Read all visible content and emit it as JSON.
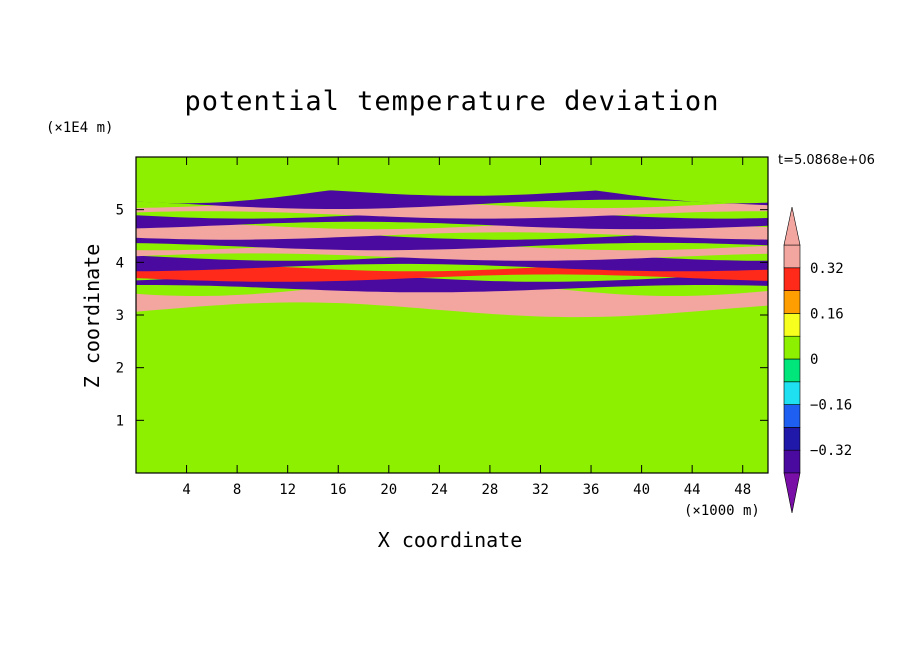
{
  "chart_data": {
    "type": "heatmap",
    "title": "potential temperature deviation",
    "xlabel": "X coordinate",
    "ylabel": "Z coordinate",
    "x_unit": "(×1000 m)",
    "y_unit": "(×1E4 m)",
    "time_label": "t=5.0868e+06",
    "xlim": [
      0,
      50
    ],
    "ylim": [
      0,
      6
    ],
    "x_ticks": [
      4,
      8,
      12,
      16,
      20,
      24,
      28,
      32,
      36,
      40,
      44,
      48
    ],
    "y_ticks": [
      1,
      2,
      3,
      4,
      5
    ],
    "colorbar": {
      "levels": [
        -0.4,
        -0.32,
        -0.24,
        -0.16,
        -0.08,
        0,
        0.08,
        0.16,
        0.24,
        0.32,
        0.4
      ],
      "labels": [
        "0.32",
        "0.16",
        "0",
        "−0.16",
        "−0.32"
      ],
      "label_values": [
        0.32,
        0.16,
        0,
        -0.16,
        -0.32
      ],
      "colors": [
        "#7a0fa8",
        "#4a0aa0",
        "#1f18a8",
        "#1e5ef0",
        "#1ee0f0",
        "#00e67a",
        "#8cf000",
        "#f6ff1e",
        "#ff9e00",
        "#ff2a1a",
        "#f3a6a0"
      ],
      "under_color": "#7a0fa8",
      "over_color": "#f3a6a0"
    },
    "bands": [
      {
        "z": 0.25,
        "value": 0.04
      },
      {
        "z": 0.95,
        "value": 0.06
      },
      {
        "z": 1.35,
        "value": 0.02
      },
      {
        "z": 1.8,
        "value": 0.06
      },
      {
        "z": 2.3,
        "value": 0.02
      },
      {
        "z": 2.8,
        "value": 0.05
      },
      {
        "z": 3.4,
        "value": 0.38
      },
      {
        "z": 3.6,
        "value": -0.36
      },
      {
        "z": 3.8,
        "value": 0.3
      },
      {
        "z": 4.0,
        "value": -0.38
      },
      {
        "z": 4.2,
        "value": 0.42
      },
      {
        "z": 4.4,
        "value": -0.35
      },
      {
        "z": 4.6,
        "value": 0.4
      },
      {
        "z": 4.8,
        "value": -0.4
      },
      {
        "z": 5.0,
        "value": 0.42
      },
      {
        "z": 5.2,
        "value": -0.38
      },
      {
        "z": 5.5,
        "value": 0.05
      }
    ]
  }
}
